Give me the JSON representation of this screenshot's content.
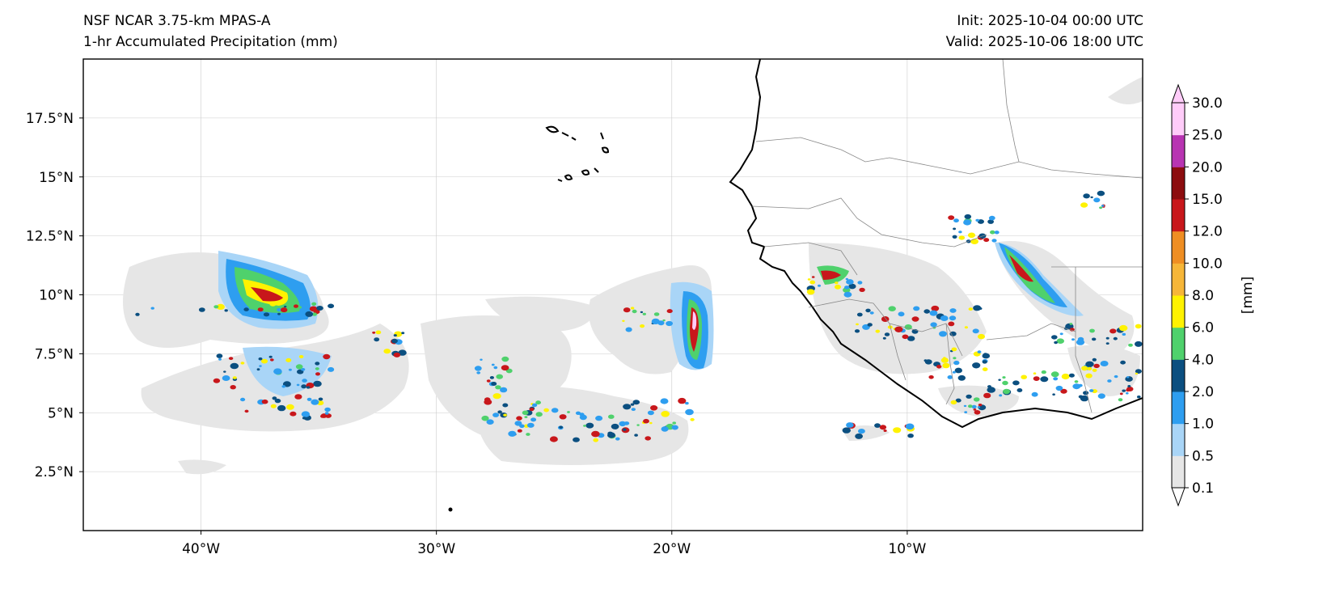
{
  "header": {
    "model": "NSF NCAR 3.75-km MPAS-A",
    "field": "1-hr Accumulated Precipitation (mm)",
    "init": "Init: 2025-10-04 00:00 UTC",
    "valid": "Valid: 2025-10-06 18:00 UTC"
  },
  "map": {
    "lon_range": [
      -45,
      0
    ],
    "lat_range": [
      0,
      20
    ],
    "lat_ticks": [
      {
        "value": 17.5,
        "label": "17.5°N"
      },
      {
        "value": 15,
        "label": "15°N"
      },
      {
        "value": 12.5,
        "label": "12.5°N"
      },
      {
        "value": 10,
        "label": "10°N"
      },
      {
        "value": 7.5,
        "label": "7.5°N"
      },
      {
        "value": 5,
        "label": "5°N"
      },
      {
        "value": 2.5,
        "label": "2.5°N"
      }
    ],
    "lon_ticks": [
      {
        "value": -40,
        "label": "40°W"
      },
      {
        "value": -30,
        "label": "30°W"
      },
      {
        "value": -20,
        "label": "20°W"
      },
      {
        "value": -10,
        "label": "10°W"
      }
    ],
    "gridlines": true
  },
  "colorbar": {
    "unit": "[mm]",
    "levels": [
      "0.1",
      "0.5",
      "1.0",
      "2.0",
      "4.0",
      "6.0",
      "8.0",
      "10.0",
      "12.0",
      "15.0",
      "20.0",
      "25.0",
      "30.0"
    ],
    "colors": [
      "#e6e6e6",
      "#a9d5f7",
      "#2e9ef0",
      "#0b4f80",
      "#4fd16c",
      "#fff200",
      "#f6b638",
      "#ef8e23",
      "#c8171b",
      "#8c0d0f",
      "#b834b2",
      "#ffccf9"
    ],
    "extend_min_color": "#ffffff",
    "extend_max_color": "#ffccf9"
  }
}
